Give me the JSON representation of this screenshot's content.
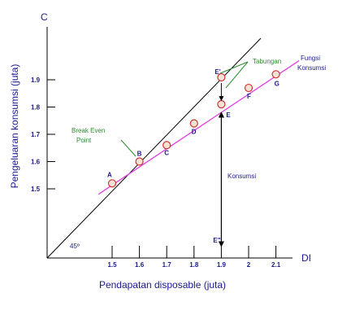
{
  "axes": {
    "y_letter": "C",
    "x_letter": "DI",
    "y_label": "Pengeluaran konsumsi (juta)",
    "x_label": "Pendapatan disposable (juta)",
    "origin_angle": "45º"
  },
  "annotations": {
    "break_even_line1": "Break Even",
    "break_even_line2": "Point",
    "tabungan": "Tabungan",
    "fungsi_line1": "Fungsi",
    "fungsi_line2": "Konsumsi",
    "konsumsi": "Konsumsi"
  },
  "colors": {
    "consumption_line": "#e040e0",
    "guide_line": "#000000",
    "point_fill": "#f6e3d6",
    "point_stroke": "#cc3333",
    "text": "#1a1a8c",
    "annotation_green": "#2e8b2e"
  },
  "chart_data": {
    "type": "line",
    "x_ticks": [
      "1.5",
      "1.6",
      "1.7",
      "1.8",
      "1.9",
      "2",
      "2.1"
    ],
    "y_ticks": [
      "1.5",
      "1.6",
      "1.7",
      "1.8",
      "1.9"
    ],
    "series": [
      {
        "name": "Fungsi Konsumsi",
        "points": [
          {
            "label": "A",
            "x": 1.5,
            "y": 1.52
          },
          {
            "label": "B",
            "x": 1.6,
            "y": 1.6
          },
          {
            "label": "C",
            "x": 1.7,
            "y": 1.66
          },
          {
            "label": "D",
            "x": 1.8,
            "y": 1.74
          },
          {
            "label": "E",
            "x": 1.9,
            "y": 1.81
          },
          {
            "label": "F",
            "x": 2.0,
            "y": 1.87
          },
          {
            "label": "G",
            "x": 2.1,
            "y": 1.92
          }
        ]
      }
    ],
    "guide_point": {
      "label": "E'",
      "x": 1.9,
      "y": 1.9
    },
    "axis_point": {
      "label": "E\"",
      "x": 1.9
    }
  }
}
